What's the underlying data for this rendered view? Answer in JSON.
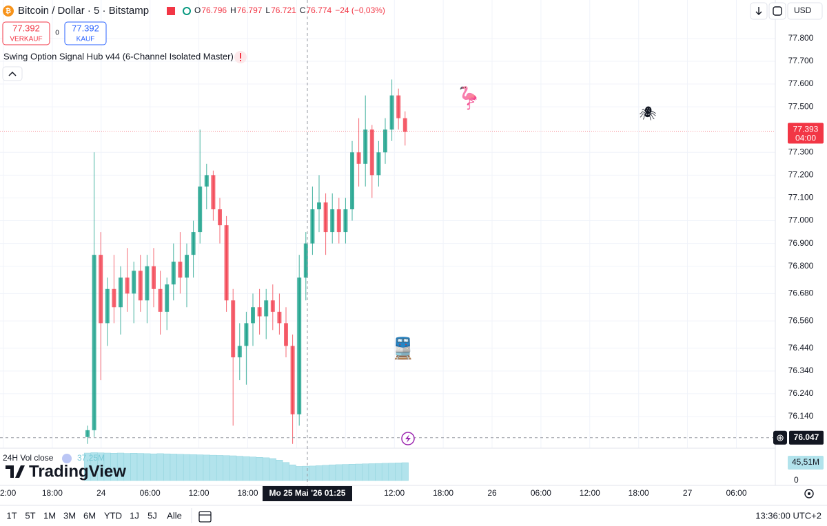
{
  "header": {
    "symbol": "Bitcoin / Dollar · 5 · Bitstamp",
    "ohlc": [
      {
        "label": "O",
        "value": 76.796
      },
      {
        "label": "H",
        "value": 76.797
      },
      {
        "label": "L",
        "value": 76.721
      },
      {
        "label": "C",
        "value": 76.774
      }
    ],
    "change": "−24 (−0,03%)",
    "currency": "USD"
  },
  "trade": {
    "sell_price": 77.392,
    "sell_label": "VERKAUF",
    "spread": 0,
    "buy_price": 77.392,
    "buy_label": "KAUF"
  },
  "indicator": "Swing Option Signal Hub v44 (6-Channel Isolated Master)",
  "markers": [
    "🦩",
    "🕷",
    "🚆"
  ],
  "chart_data": [
    {
      "type": "candlestick",
      "up_color": "#089981",
      "down_color": "#f23645",
      "open": [
        76.05,
        76.08,
        76.85,
        76.55,
        76.7,
        76.62,
        76.75,
        76.68,
        76.78,
        76.65,
        76.8,
        76.7,
        76.6,
        76.72,
        76.82,
        76.75,
        76.85,
        76.95,
        77.15,
        77.2,
        77.05,
        76.98,
        76.65,
        76.4,
        76.45,
        76.55,
        76.62,
        76.58,
        76.65,
        76.6,
        76.55,
        76.45,
        76.15,
        76.75,
        76.9,
        77.05,
        77.08,
        76.95,
        77.05,
        76.95,
        77.05,
        77.3,
        77.25,
        77.4,
        77.2,
        77.3,
        77.4,
        77.55,
        77.45
      ],
      "high": [
        76.1,
        77.3,
        76.95,
        76.75,
        76.85,
        76.8,
        76.88,
        76.82,
        76.85,
        76.85,
        76.88,
        76.78,
        76.75,
        76.9,
        76.95,
        76.9,
        77.0,
        77.4,
        77.25,
        77.22,
        77.1,
        77.02,
        76.7,
        76.55,
        76.6,
        76.68,
        76.7,
        76.7,
        76.72,
        76.68,
        76.62,
        76.5,
        76.85,
        76.95,
        77.15,
        77.2,
        77.12,
        77.12,
        77.1,
        77.1,
        77.35,
        77.45,
        77.55,
        77.42,
        77.35,
        77.45,
        77.62,
        77.58,
        77.48
      ],
      "low": [
        76.02,
        76.05,
        76.3,
        76.45,
        76.55,
        76.5,
        76.6,
        76.55,
        76.6,
        76.55,
        76.62,
        76.5,
        76.52,
        76.65,
        76.68,
        76.62,
        76.75,
        76.9,
        77.05,
        77.0,
        76.9,
        76.6,
        76.1,
        76.3,
        76.28,
        76.45,
        76.5,
        76.48,
        76.52,
        76.5,
        76.4,
        76.02,
        76.1,
        76.65,
        76.85,
        76.95,
        76.85,
        76.9,
        76.9,
        76.9,
        77.0,
        77.15,
        77.15,
        77.1,
        77.15,
        77.25,
        77.35,
        77.4,
        77.33
      ],
      "close": [
        76.08,
        76.85,
        76.55,
        76.7,
        76.62,
        76.75,
        76.68,
        76.78,
        76.65,
        76.8,
        76.7,
        76.6,
        76.72,
        76.82,
        76.75,
        76.85,
        76.95,
        77.15,
        77.2,
        77.05,
        76.98,
        76.65,
        76.4,
        76.45,
        76.55,
        76.62,
        76.58,
        76.65,
        76.6,
        76.55,
        76.45,
        76.15,
        76.75,
        76.9,
        77.05,
        77.08,
        76.95,
        77.05,
        76.95,
        77.05,
        77.3,
        77.25,
        77.4,
        77.2,
        77.3,
        77.4,
        77.55,
        77.45,
        77.39
      ],
      "ylim": [
        76.004,
        77.969
      ],
      "yticks": [
        {
          "value": 77.8,
          "label": "77.800"
        },
        {
          "value": 77.7,
          "label": "77.700"
        },
        {
          "value": 77.6,
          "label": "77.600"
        },
        {
          "value": 77.5,
          "label": "77.500"
        },
        {
          "value": 77.3,
          "label": "77.300"
        },
        {
          "value": 77.2,
          "label": "77.200"
        },
        {
          "value": 77.1,
          "label": "77.100"
        },
        {
          "value": 77,
          "label": "77.000"
        },
        {
          "value": 76.9,
          "label": "76.900"
        },
        {
          "value": 76.8,
          "label": "76.800"
        },
        {
          "value": 76.68,
          "label": "76.680"
        },
        {
          "value": 76.56,
          "label": "76.560"
        },
        {
          "value": 76.44,
          "label": "76.440"
        },
        {
          "value": 76.34,
          "label": "76.340"
        },
        {
          "value": 76.24,
          "label": "76.240"
        },
        {
          "value": 76.14,
          "label": "76.140"
        }
      ],
      "grid": true,
      "last_price": 77.393,
      "countdown": "04:00",
      "crosshair_price": 76.047,
      "crosshair_time": "Mo 25 Mai '26   01:25",
      "categories": [
        "2:00",
        "18:00",
        "24",
        "06:00",
        "12:00",
        "18:00",
        null,
        null,
        "12:00",
        "18:00",
        "26",
        "06:00",
        "12:00",
        "18:00",
        "27",
        "06:00"
      ]
    },
    {
      "type": "bar",
      "title": "24H Vol close",
      "value_label": "37,25M",
      "color": "#b2e3ec",
      "values": [
        70000000,
        71000000,
        70500000,
        70000000,
        69500000,
        70000000,
        69000000,
        69500000,
        69000000,
        68500000,
        68000000,
        68500000,
        68000000,
        67500000,
        67000000,
        66500000,
        66000000,
        65500000,
        65000000,
        64500000,
        64000000,
        63500000,
        63000000,
        62000000,
        61000000,
        60000000,
        59000000,
        58000000,
        56000000,
        52000000,
        46000000,
        40000000,
        36000000,
        36500000,
        37000000,
        38000000,
        39000000,
        40000000,
        40500000,
        41000000,
        41500000,
        42000000,
        42500000,
        43000000,
        43500000,
        44000000,
        44500000,
        45000000,
        45510000
      ],
      "ylim": [
        0,
        80500000
      ],
      "yticks": [
        0,
        {
          "value": 45510000,
          "label": "45,51M"
        }
      ]
    }
  ],
  "toolbar": {
    "ranges": [
      "1T",
      "5T",
      "1M",
      "3M",
      "6M",
      "YTD",
      "1J",
      "5J",
      "Alle"
    ],
    "clock": "13:36:00 UTC+2"
  },
  "brand": "TradingView"
}
